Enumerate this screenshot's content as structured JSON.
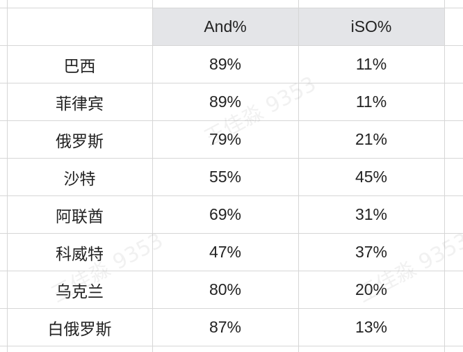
{
  "table": {
    "headers": [
      "",
      "And%",
      "iSO%"
    ],
    "rows": [
      [
        "巴西",
        "89%",
        "11%"
      ],
      [
        "菲律宾",
        "89%",
        "11%"
      ],
      [
        "俄罗斯",
        "79%",
        "21%"
      ],
      [
        "沙特",
        "55%",
        "45%"
      ],
      [
        "阿联酋",
        "69%",
        "31%"
      ],
      [
        "科威特",
        "47%",
        "37%"
      ],
      [
        "乌克兰",
        "80%",
        "20%"
      ],
      [
        "白俄罗斯",
        "87%",
        "13%"
      ]
    ]
  },
  "watermark": "王佳淼 9353",
  "colors": {
    "header_bg": "#e4e5e8",
    "grid": "#d6d6d6",
    "text": "#222222"
  }
}
